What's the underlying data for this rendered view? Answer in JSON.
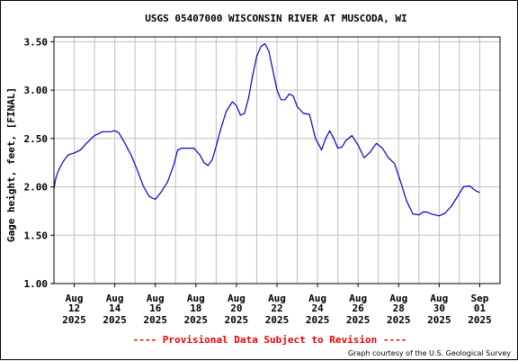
{
  "chart_data": {
    "type": "line",
    "title": "USGS 05407000 WISCONSIN RIVER AT MUSCODA, WI",
    "ylabel": "Gage height, feet, [FINAL]",
    "xlabel": "",
    "ylim": [
      1.0,
      3.55
    ],
    "xlim": [
      0,
      22
    ],
    "grid": true,
    "yticks": [
      {
        "value": 1.0,
        "label": "1.00"
      },
      {
        "value": 1.5,
        "label": "1.50"
      },
      {
        "value": 2.0,
        "label": "2.00"
      },
      {
        "value": 2.5,
        "label": "2.50"
      },
      {
        "value": 3.0,
        "label": "3.00"
      },
      {
        "value": 3.5,
        "label": "3.50"
      }
    ],
    "xticks": [
      {
        "value": 1,
        "month": "Aug",
        "day": "12",
        "year": "2025"
      },
      {
        "value": 3,
        "month": "Aug",
        "day": "14",
        "year": "2025"
      },
      {
        "value": 5,
        "month": "Aug",
        "day": "16",
        "year": "2025"
      },
      {
        "value": 7,
        "month": "Aug",
        "day": "18",
        "year": "2025"
      },
      {
        "value": 9,
        "month": "Aug",
        "day": "20",
        "year": "2025"
      },
      {
        "value": 11,
        "month": "Aug",
        "day": "22",
        "year": "2025"
      },
      {
        "value": 13,
        "month": "Aug",
        "day": "24",
        "year": "2025"
      },
      {
        "value": 15,
        "month": "Aug",
        "day": "26",
        "year": "2025"
      },
      {
        "value": 17,
        "month": "Aug",
        "day": "28",
        "year": "2025"
      },
      {
        "value": 19,
        "month": "Aug",
        "day": "30",
        "year": "2025"
      },
      {
        "value": 21,
        "month": "Sep",
        "day": "01",
        "year": "2025"
      }
    ],
    "series": [
      {
        "color": "#0000cc",
        "x": [
          0.0,
          0.1,
          0.25,
          0.45,
          0.7,
          1.0,
          1.3,
          1.6,
          2.0,
          2.4,
          2.8,
          3.0,
          3.2,
          3.5,
          3.8,
          4.1,
          4.4,
          4.7,
          5.0,
          5.3,
          5.6,
          5.9,
          6.1,
          6.3,
          6.6,
          6.9,
          7.2,
          7.4,
          7.6,
          7.8,
          8.0,
          8.2,
          8.5,
          8.8,
          9.0,
          9.2,
          9.4,
          9.6,
          9.8,
          10.0,
          10.2,
          10.4,
          10.6,
          10.8,
          11.0,
          11.2,
          11.4,
          11.6,
          11.8,
          12.0,
          12.3,
          12.6,
          12.9,
          13.2,
          13.4,
          13.6,
          13.8,
          14.0,
          14.2,
          14.4,
          14.7,
          15.0,
          15.3,
          15.6,
          15.9,
          16.2,
          16.5,
          16.8,
          17.1,
          17.4,
          17.7,
          18.0,
          18.2,
          18.4,
          18.6,
          18.8,
          19.0,
          19.3,
          19.6,
          19.9,
          20.2,
          20.5,
          20.8,
          21.0
        ],
        "y": [
          1.98,
          2.1,
          2.18,
          2.26,
          2.33,
          2.35,
          2.38,
          2.45,
          2.53,
          2.57,
          2.57,
          2.58,
          2.56,
          2.45,
          2.33,
          2.18,
          2.01,
          1.9,
          1.87,
          1.95,
          2.05,
          2.22,
          2.38,
          2.4,
          2.4,
          2.4,
          2.33,
          2.25,
          2.22,
          2.28,
          2.42,
          2.58,
          2.78,
          2.88,
          2.84,
          2.74,
          2.76,
          2.92,
          3.15,
          3.35,
          3.45,
          3.48,
          3.4,
          3.2,
          3.0,
          2.9,
          2.9,
          2.96,
          2.94,
          2.83,
          2.76,
          2.75,
          2.5,
          2.38,
          2.5,
          2.58,
          2.5,
          2.4,
          2.41,
          2.48,
          2.53,
          2.43,
          2.3,
          2.36,
          2.45,
          2.4,
          2.3,
          2.24,
          2.05,
          1.85,
          1.72,
          1.71,
          1.74,
          1.74,
          1.72,
          1.71,
          1.7,
          1.73,
          1.8,
          1.9,
          2.0,
          2.01,
          1.96,
          1.94
        ]
      }
    ]
  },
  "footer": {
    "provisional": "---- Provisional Data Subject to Revision ----",
    "credit": "Graph courtesy of the U.S. Geological Survey"
  },
  "colors": {
    "line": "#0000cc",
    "grid": "#c0c0c0",
    "provisional": "#ee0000",
    "text": "#000000"
  }
}
